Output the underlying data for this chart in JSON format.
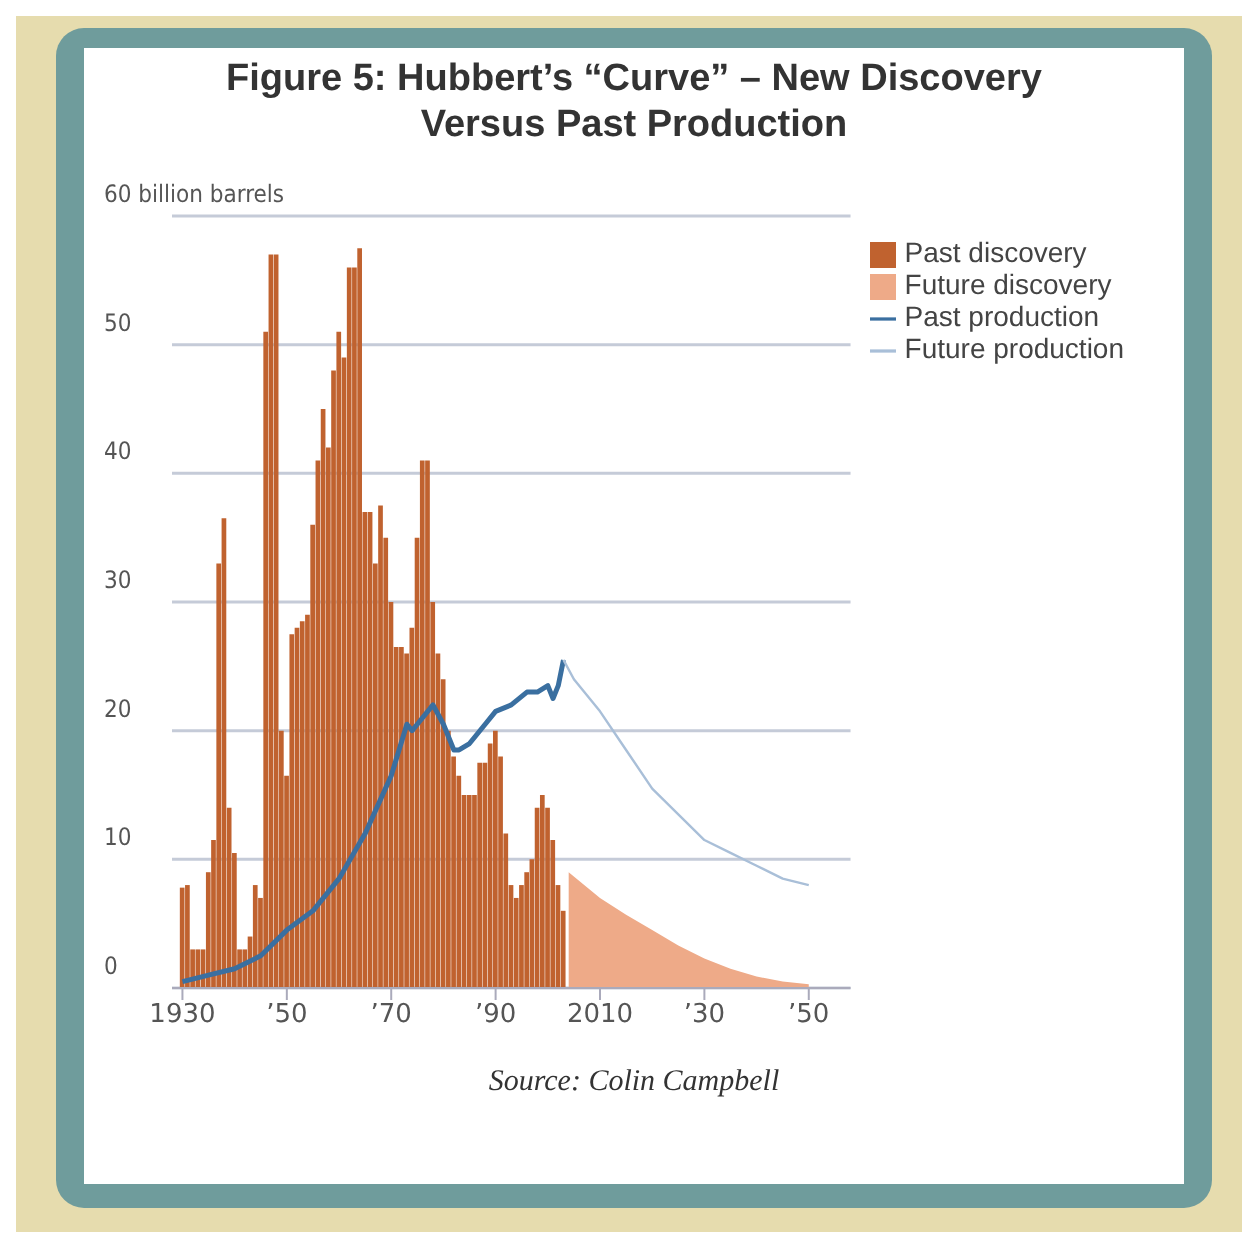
{
  "chart_data": {
    "type": "bar",
    "title": "Figure 5: Hubbert’s “Curve” – New Discovery Versus Past Production",
    "annotations": [
      "Source: Colin Campbell"
    ],
    "xlim": [
      1928,
      2058
    ],
    "xticks": [
      1930,
      {
        "value": 1950,
        "label": "’50"
      },
      {
        "value": 1970,
        "label": "’70"
      },
      {
        "value": 1990,
        "label": "’90"
      },
      2010,
      {
        "value": 2030,
        "label": "’30"
      },
      {
        "value": 2050,
        "label": "’50"
      }
    ],
    "ylim": [
      0,
      60
    ],
    "yticks": [
      0,
      10,
      20,
      30,
      40,
      50,
      {
        "value": 60,
        "label": "60 billion barrels"
      }
    ],
    "grid": "y",
    "legend": "top right",
    "series": [
      {
        "name": "Past discovery",
        "color": "#c0622f",
        "x": [
          1930,
          1931,
          1932,
          1933,
          1934,
          1935,
          1936,
          1937,
          1938,
          1939,
          1940,
          1941,
          1942,
          1943,
          1944,
          1945,
          1946,
          1947,
          1948,
          1949,
          1950,
          1951,
          1952,
          1953,
          1954,
          1955,
          1956,
          1957,
          1958,
          1959,
          1960,
          1961,
          1962,
          1963,
          1964,
          1965,
          1966,
          1967,
          1968,
          1969,
          1970,
          1971,
          1972,
          1973,
          1974,
          1975,
          1976,
          1977,
          1978,
          1979,
          1980,
          1981,
          1982,
          1983,
          1984,
          1985,
          1986,
          1987,
          1988,
          1989,
          1990,
          1991,
          1992,
          1993,
          1994,
          1995,
          1996,
          1997,
          1998,
          1999,
          2000,
          2001,
          2002,
          2003
        ],
        "values": [
          7.8,
          8,
          3,
          3,
          3,
          9,
          11.5,
          33,
          36.5,
          14,
          10.5,
          3,
          3,
          4,
          8,
          7,
          51,
          57,
          57,
          20,
          16.5,
          27.5,
          28,
          28.5,
          29,
          36,
          41,
          45,
          42,
          48,
          51,
          49,
          56,
          56,
          57.5,
          37,
          37,
          33,
          37.5,
          35,
          30,
          26.5,
          26.5,
          26,
          28,
          35,
          41,
          41,
          30,
          26,
          24,
          20,
          18,
          16.5,
          15,
          15,
          15,
          17.5,
          17.5,
          19,
          20,
          18,
          12,
          8,
          7,
          8,
          9,
          10,
          14,
          15,
          14,
          11.5,
          8,
          6
        ]
      },
      {
        "name": "Future discovery",
        "type": "area",
        "color": "#eeaa88",
        "x": [
          2004,
          2010,
          2015,
          2020,
          2025,
          2030,
          2035,
          2040,
          2045,
          2050
        ],
        "values": [
          9,
          7,
          5.7,
          4.5,
          3.3,
          2.3,
          1.5,
          0.9,
          0.5,
          0.3
        ]
      },
      {
        "name": "Past production",
        "type": "line",
        "color": "#3a6fa0",
        "x": [
          1930,
          1935,
          1940,
          1945,
          1950,
          1955,
          1960,
          1965,
          1970,
          1973,
          1974,
          1975,
          1978,
          1980,
          1982,
          1983,
          1985,
          1988,
          1990,
          1993,
          1996,
          1998,
          2000,
          2001,
          2002,
          2003
        ],
        "values": [
          0.5,
          1,
          1.5,
          2.5,
          4.5,
          6,
          8.5,
          12,
          16.5,
          20.5,
          20,
          20.5,
          22,
          20.5,
          18.5,
          18.5,
          19,
          20.5,
          21.5,
          22,
          23,
          23,
          23.5,
          22.5,
          23.5,
          25.5
        ]
      },
      {
        "name": "Future production",
        "type": "line",
        "color": "#a9bfd8",
        "x": [
          2003,
          2005,
          2010,
          2015,
          2020,
          2025,
          2030,
          2035,
          2040,
          2045,
          2050
        ],
        "values": [
          25.5,
          24,
          21.5,
          18.5,
          15.5,
          13.5,
          11.5,
          10.5,
          9.5,
          8.5,
          8
        ]
      }
    ]
  }
}
